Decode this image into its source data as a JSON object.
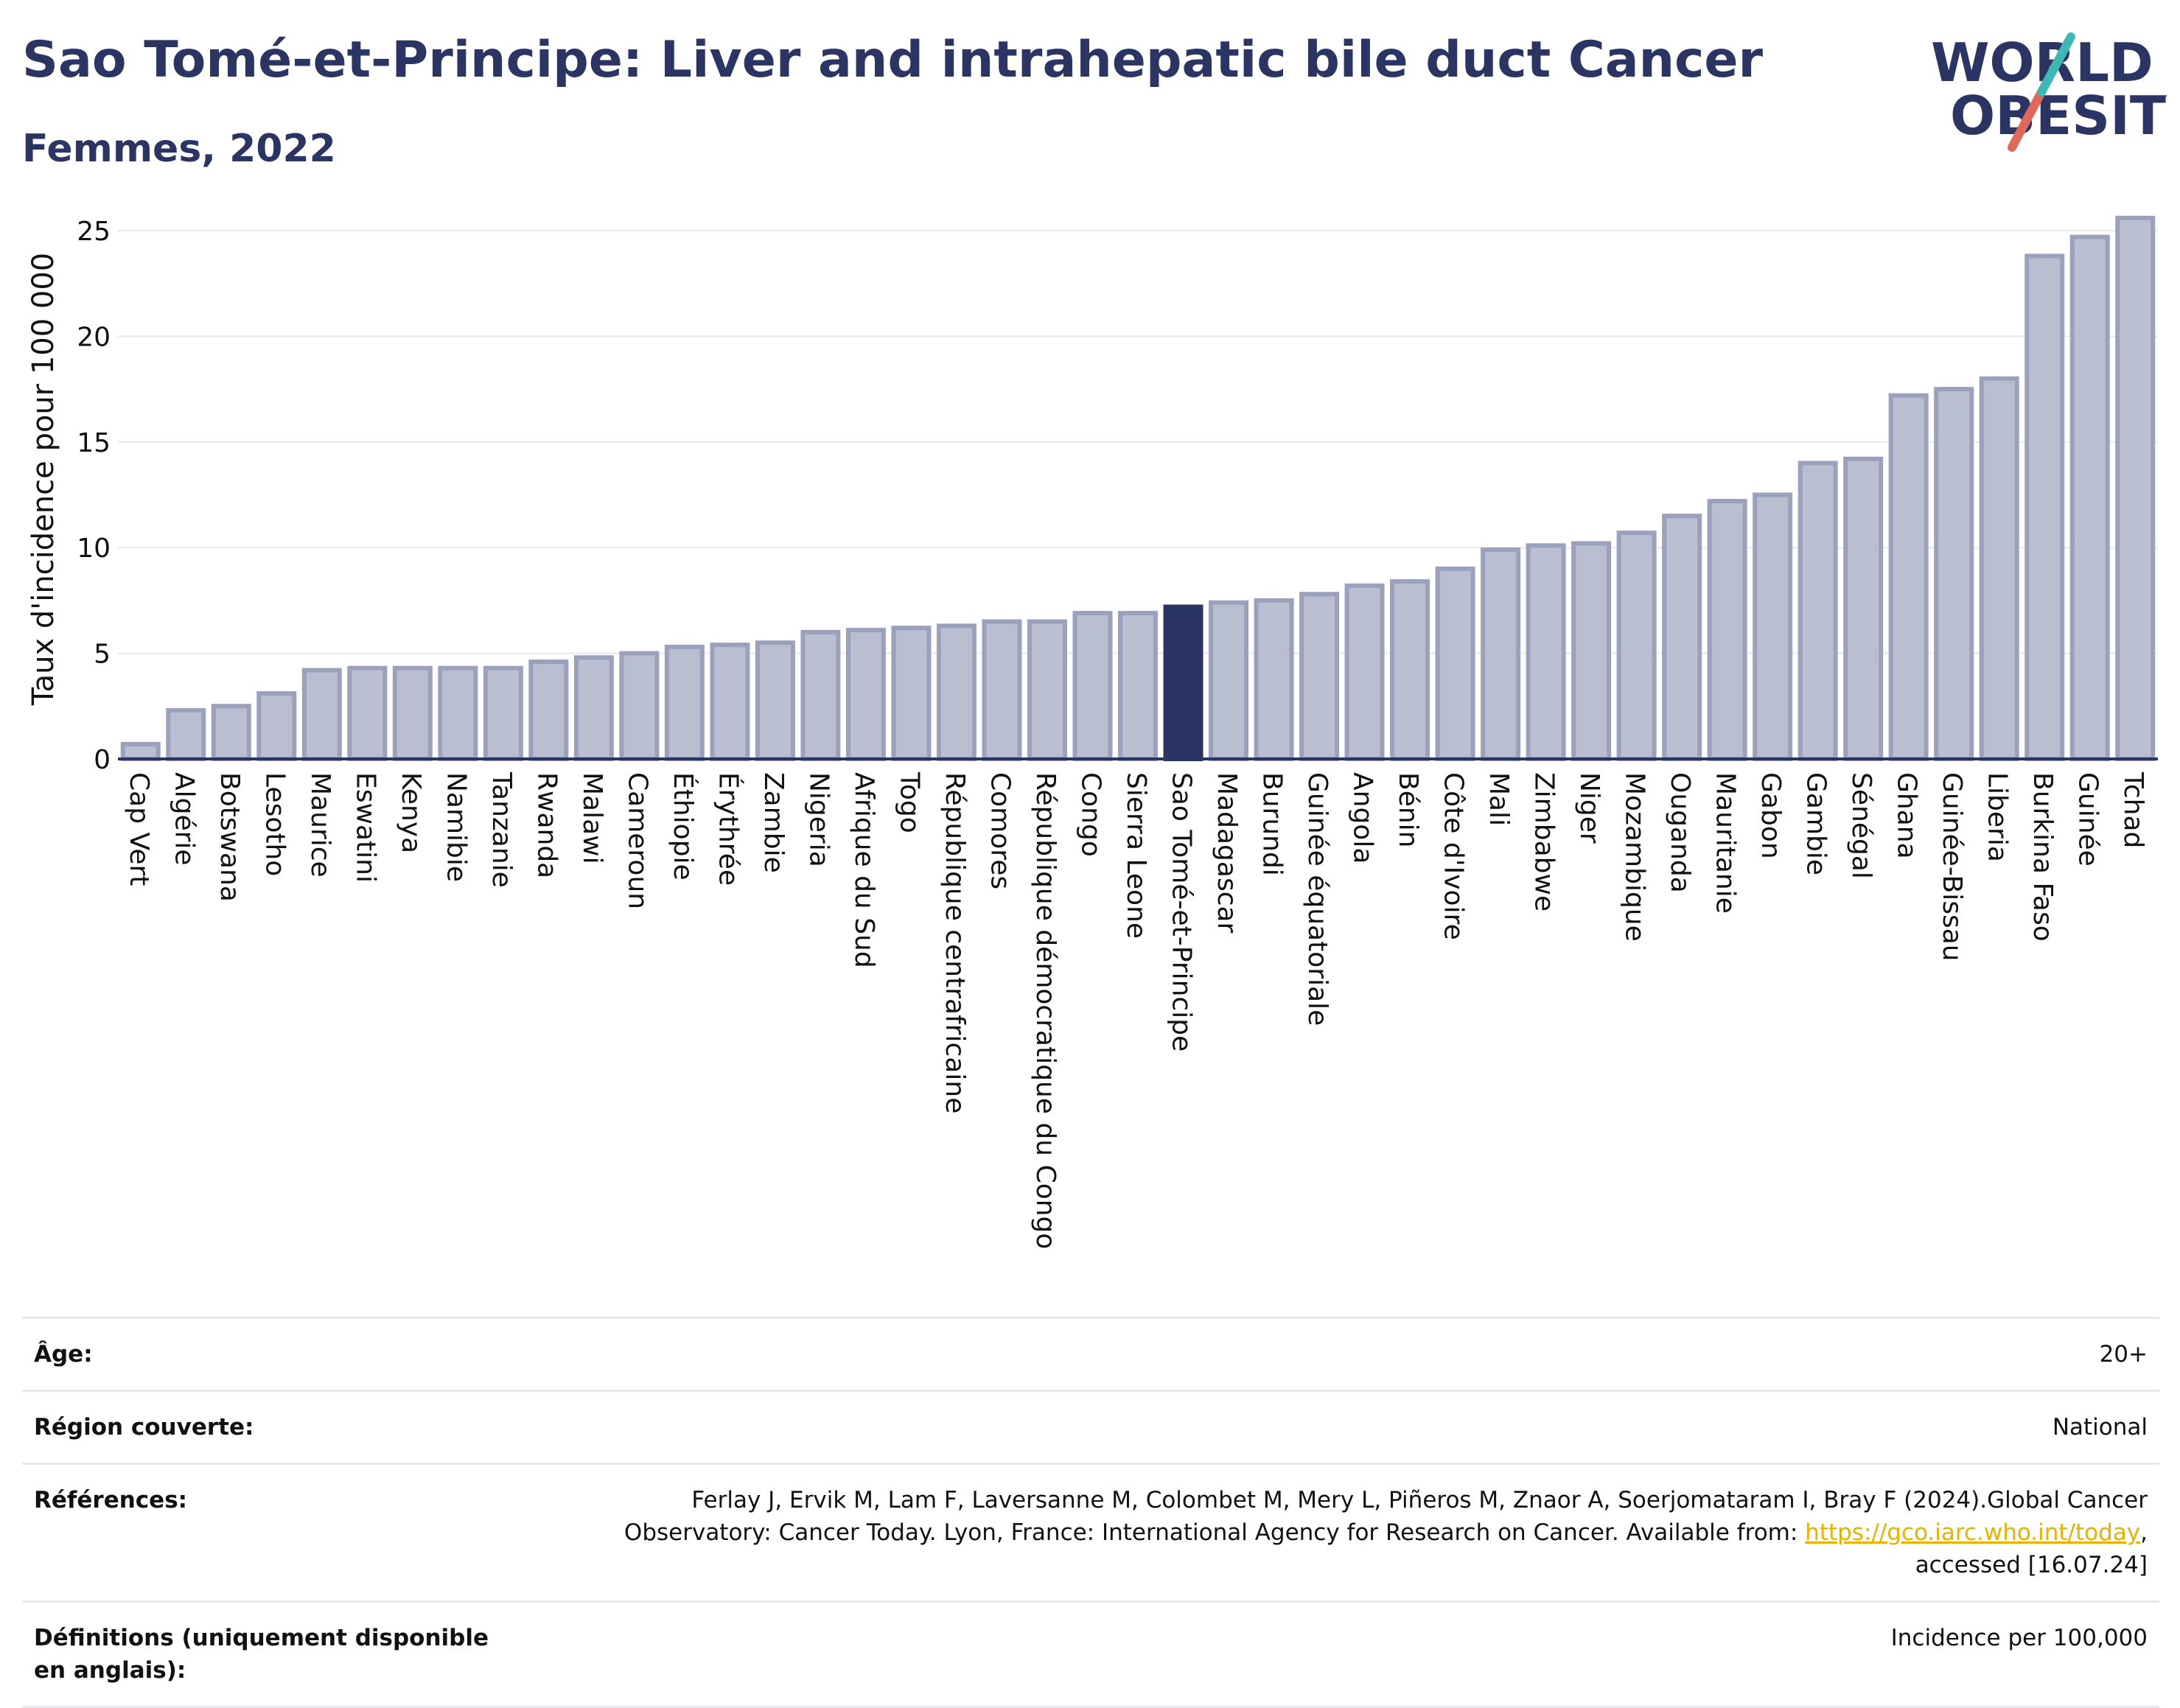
{
  "header": {
    "title": "Sao Tomé-et-Principe: Liver and intrahepatic bile duct Cancer",
    "subtitle": "Femmes, 2022"
  },
  "logo": {
    "line1": "WORLD",
    "line2": "OBESITY",
    "icon": "world-obesity-logo"
  },
  "colors": {
    "bar": "#b9bed0",
    "bar_border": "#9aa1bd",
    "highlight": "#2a3563",
    "title": "#2a3563",
    "link": "#e8b200"
  },
  "chart_data": {
    "type": "bar",
    "title": "Sao Tomé-et-Principe: Liver and intrahepatic bile duct Cancer",
    "subtitle": "Femmes, 2022",
    "ylabel": "Taux d'incidence pour 100 000",
    "xlabel": "",
    "ylim": [
      0,
      26.5
    ],
    "yticks": [
      0,
      5,
      10,
      15,
      20,
      25
    ],
    "grid": true,
    "highlight": "Sao Tomé-et-Principe",
    "categories": [
      "Cap Vert",
      "Algérie",
      "Botswana",
      "Lesotho",
      "Maurice",
      "Eswatini",
      "Kenya",
      "Namibie",
      "Tanzanie",
      "Rwanda",
      "Malawi",
      "Cameroun",
      "Éthiopie",
      "Érythrée",
      "Zambie",
      "Nigeria",
      "Afrique du Sud",
      "Togo",
      "République centrafricaine",
      "Comores",
      "République démocratique du Congo",
      "Congo",
      "Sierra Leone",
      "Sao Tomé-et-Principe",
      "Madagascar",
      "Burundi",
      "Guinée équatoriale",
      "Angola",
      "Bénin",
      "Côte d'Ivoire",
      "Mali",
      "Zimbabwe",
      "Niger",
      "Mozambique",
      "Ouganda",
      "Mauritanie",
      "Gabon",
      "Gambie",
      "Sénégal",
      "Ghana",
      "Guinée-Bissau",
      "Liberia",
      "Burkina Faso",
      "Guinée",
      "Tchad"
    ],
    "values": [
      0.7,
      2.3,
      2.5,
      3.1,
      4.2,
      4.3,
      4.3,
      4.3,
      4.3,
      4.6,
      4.8,
      5.0,
      5.3,
      5.4,
      5.5,
      6.0,
      6.1,
      6.2,
      6.3,
      6.5,
      6.5,
      6.9,
      6.9,
      7.2,
      7.4,
      7.5,
      7.8,
      8.2,
      8.4,
      9.0,
      9.9,
      10.1,
      10.2,
      10.7,
      11.5,
      12.2,
      12.5,
      14.0,
      14.2,
      17.2,
      17.5,
      18.0,
      23.8,
      24.7,
      25.6
    ]
  },
  "info_table": [
    {
      "label": "Âge:",
      "value": "20+"
    },
    {
      "label": "Région couverte:",
      "value": "National"
    },
    {
      "label": "Références:",
      "value_pre": "Ferlay J, Ervik M, Lam F, Laversanne M, Colombet M, Mery L, Piñeros M, Znaor A, Soerjomataram I, Bray F (2024).Global Cancer Observatory: Cancer Today. Lyon, France: International Agency for Research on Cancer. Available from: ",
      "link": "https://gco.iarc.who.int/today",
      "value_post": ", accessed [16.07.24]"
    },
    {
      "label": "Définitions (uniquement disponible en anglais):",
      "value": "Incidence per 100,000"
    }
  ]
}
